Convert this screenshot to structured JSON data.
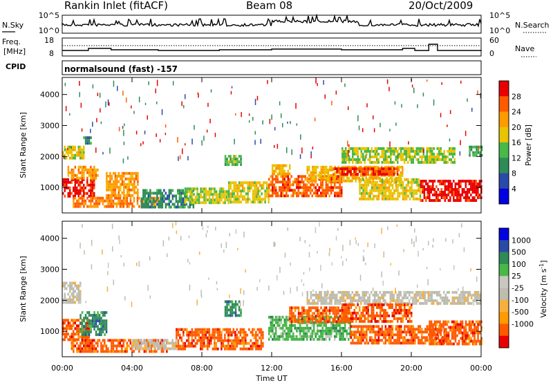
{
  "header": {
    "station": "Rankin Inlet (fitACF)",
    "beam": "Beam 08",
    "date": "20/Oct/2009"
  },
  "noise_panel": {
    "left_label": "N.Sky",
    "right_label": "N.Search",
    "left_ticks": [
      "10^5",
      "10^0"
    ],
    "right_ticks": [
      "10^5",
      "10^0"
    ]
  },
  "freq_panel": {
    "left_label_1": "Freq.",
    "left_label_2": "[MHz]",
    "right_label": "Nave",
    "left_ticks": [
      "18",
      "8"
    ],
    "right_ticks": [
      "60",
      "0"
    ]
  },
  "cpid_panel": {
    "label": "CPID",
    "text": "normalsound (fast) -157"
  },
  "x_axis": {
    "ticks": [
      "00:00",
      "04:00",
      "08:00",
      "12:00",
      "16:00",
      "20:00",
      "00:00"
    ],
    "label": "Time UT"
  },
  "colors": {
    "power": [
      "#0000e0",
      "#2a4aa8",
      "#2e8b57",
      "#48b848",
      "#e8c300",
      "#ff9a00",
      "#ff5a00",
      "#e80000"
    ],
    "velocity": [
      "#e80000",
      "#ff5a00",
      "#ff9a00",
      "#f5b040",
      "#bdbdb0",
      "#c8c8c0",
      "#48b848",
      "#2e8b57",
      "#2a4aa8",
      "#0000e0"
    ]
  },
  "chart_data": [
    {
      "type": "heatmap",
      "xlabel": "Time UT",
      "ylabel": "Slant Range [km]",
      "xlim": [
        0,
        24
      ],
      "ylim": [
        180,
        4550
      ],
      "y_ticks": [
        1000,
        2000,
        3000,
        4000
      ],
      "colorbar_label": "Power [dB]",
      "colorbar_ticks": [
        "4",
        "8",
        "12",
        "16",
        "20",
        "24",
        "28"
      ],
      "regions": [
        {
          "t": [
            0.0,
            1.8
          ],
          "r": [
            700,
            1300
          ],
          "v": 30
        },
        {
          "t": [
            0.3,
            2.0
          ],
          "r": [
            1300,
            1700
          ],
          "v": 22
        },
        {
          "t": [
            0.0,
            1.2
          ],
          "r": [
            1950,
            2350
          ],
          "v": 18
        },
        {
          "t": [
            1.2,
            1.6
          ],
          "r": [
            2400,
            2650
          ],
          "v": 10
        },
        {
          "t": [
            0.6,
            5.5
          ],
          "r": [
            350,
            700
          ],
          "v": 24
        },
        {
          "t": [
            2.5,
            4.3
          ],
          "r": [
            700,
            1500
          ],
          "v": 22
        },
        {
          "t": [
            4.5,
            7.5
          ],
          "r": [
            350,
            950
          ],
          "v": 10
        },
        {
          "t": [
            7.0,
            9.5
          ],
          "r": [
            550,
            1000
          ],
          "v": 16
        },
        {
          "t": [
            9.3,
            10.2
          ],
          "r": [
            1700,
            2050
          ],
          "v": 14
        },
        {
          "t": [
            9.5,
            11.8
          ],
          "r": [
            550,
            1200
          ],
          "v": 18
        },
        {
          "t": [
            11.8,
            16.0
          ],
          "r": [
            700,
            1400
          ],
          "v": 26
        },
        {
          "t": [
            12.0,
            13.0
          ],
          "r": [
            1450,
            1750
          ],
          "v": 20
        },
        {
          "t": [
            14.0,
            19.5
          ],
          "r": [
            1200,
            1700
          ],
          "v": 20
        },
        {
          "t": [
            15.5,
            19.2
          ],
          "r": [
            1400,
            1650
          ],
          "v": 28
        },
        {
          "t": [
            16.0,
            22.5
          ],
          "r": [
            1800,
            2300
          ],
          "v": 16
        },
        {
          "t": [
            17.0,
            20.5
          ],
          "r": [
            650,
            1300
          ],
          "v": 18
        },
        {
          "t": [
            20.5,
            24.0
          ],
          "r": [
            550,
            1250
          ],
          "v": 30
        },
        {
          "t": [
            23.3,
            24.0
          ],
          "r": [
            2050,
            2350
          ],
          "v": 12
        }
      ]
    },
    {
      "type": "heatmap",
      "xlabel": "Time UT",
      "ylabel": "Slant Range [km]",
      "xlim": [
        0,
        24
      ],
      "ylim": [
        180,
        4550
      ],
      "y_ticks": [
        1000,
        2000,
        3000,
        4000
      ],
      "colorbar_label": "Velocity [m s^-1]",
      "colorbar_ticks": [
        "1000",
        "500",
        "100",
        "25",
        "-25",
        "-100",
        "-500",
        "-1000"
      ],
      "regions": [
        {
          "t": [
            0.0,
            1.0
          ],
          "r": [
            1900,
            2600
          ],
          "v": 0
        },
        {
          "t": [
            0.0,
            1.5
          ],
          "r": [
            700,
            1400
          ],
          "v": -150
        },
        {
          "t": [
            1.0,
            2.5
          ],
          "r": [
            900,
            1650
          ],
          "v": 200
        },
        {
          "t": [
            0.5,
            6.0
          ],
          "r": [
            350,
            750
          ],
          "v": -150
        },
        {
          "t": [
            4.0,
            6.5
          ],
          "r": [
            450,
            750
          ],
          "v": 0
        },
        {
          "t": [
            6.5,
            11.5
          ],
          "r": [
            400,
            1100
          ],
          "v": -150
        },
        {
          "t": [
            9.3,
            10.2
          ],
          "r": [
            1550,
            2000
          ],
          "v": 150
        },
        {
          "t": [
            11.8,
            16.5
          ],
          "r": [
            700,
            1500
          ],
          "v": 50
        },
        {
          "t": [
            13.0,
            16.5
          ],
          "r": [
            1300,
            1800
          ],
          "v": -150
        },
        {
          "t": [
            14.0,
            24.0
          ],
          "r": [
            1900,
            2300
          ],
          "v": 0
        },
        {
          "t": [
            16.0,
            20.0
          ],
          "r": [
            1300,
            1900
          ],
          "v": -200
        },
        {
          "t": [
            16.5,
            22.0
          ],
          "r": [
            650,
            1200
          ],
          "v": -150
        },
        {
          "t": [
            21.0,
            24.0
          ],
          "r": [
            550,
            1350
          ],
          "v": -300
        }
      ]
    }
  ]
}
